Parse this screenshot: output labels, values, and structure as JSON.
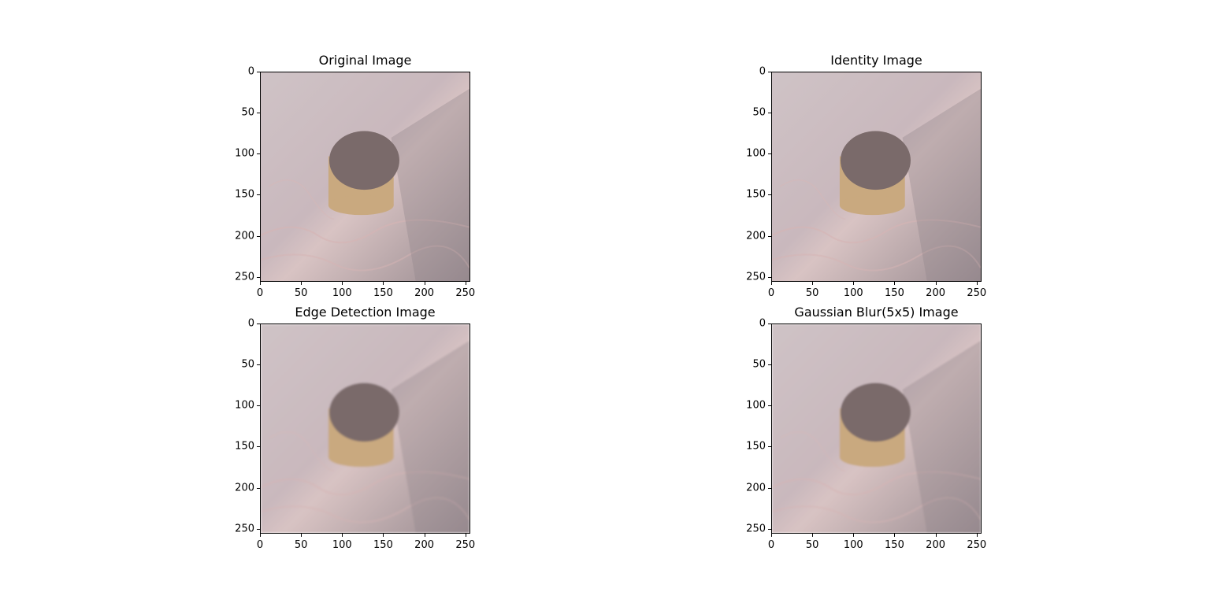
{
  "panels": [
    {
      "title": "Original Image",
      "blur": 0
    },
    {
      "title": "Identity Image",
      "blur": 0
    },
    {
      "title": "Edge Detection Image",
      "blur": 1.4
    },
    {
      "title": "Gaussian Blur(5x5) Image",
      "blur": 1.0
    }
  ],
  "axes": {
    "x_ticks": [
      "0",
      "50",
      "100",
      "150",
      "200",
      "250"
    ],
    "y_ticks": [
      "0",
      "50",
      "100",
      "150",
      "200",
      "250"
    ],
    "x_values": [
      0,
      50,
      100,
      150,
      200,
      250
    ],
    "y_values": [
      0,
      50,
      100,
      150,
      200,
      250
    ],
    "range": [
      0,
      256
    ]
  },
  "colors": {
    "wood": "#c9b8bd",
    "wood_dark": "#9a8c91",
    "cylinder_top": "#7a6a6a",
    "cylinder_side": "#c9a97f"
  }
}
